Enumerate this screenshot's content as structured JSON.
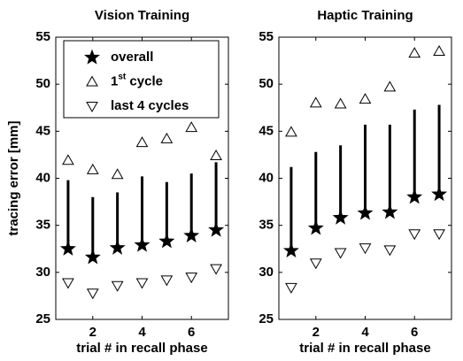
{
  "chart_data": [
    {
      "type": "scatter",
      "title": "Vision Training",
      "xlabel": "trial # in recall phase",
      "ylabel": "tracing error [mm]",
      "x": [
        1,
        2,
        3,
        4,
        5,
        6,
        7
      ],
      "xlim": [
        0.5,
        7.5
      ],
      "xticks": [
        2,
        4,
        6
      ],
      "ylim": [
        25,
        55
      ],
      "yticks": [
        25,
        30,
        35,
        40,
        45,
        50,
        55
      ],
      "legend": "upper left",
      "series": [
        {
          "name": "overall",
          "marker": "star",
          "color": "#000000",
          "values": [
            32.5,
            31.6,
            32.6,
            32.9,
            33.3,
            33.9,
            34.5
          ],
          "errors": [
            7.3,
            6.4,
            5.9,
            7.3,
            6.3,
            6.6,
            7.2
          ]
        },
        {
          "name": "1st cycle",
          "marker": "triangle-up",
          "color": "#000000",
          "values": [
            41.9,
            40.9,
            40.4,
            43.8,
            44.2,
            45.4,
            42.4
          ]
        },
        {
          "name": "last 4 cycles",
          "marker": "triangle-down",
          "color": "#000000",
          "values": [
            28.9,
            27.8,
            28.6,
            28.9,
            29.2,
            29.5,
            30.4
          ]
        }
      ]
    },
    {
      "type": "scatter",
      "title": "Haptic Training",
      "xlabel": "trial # in recall phase",
      "x": [
        1,
        2,
        3,
        4,
        5,
        6,
        7
      ],
      "xlim": [
        0.5,
        7.5
      ],
      "xticks": [
        2,
        4,
        6
      ],
      "ylim": [
        25,
        55
      ],
      "yticks": [
        25,
        30,
        35,
        40,
        45,
        50,
        55
      ],
      "series": [
        {
          "marker": "star",
          "color": "#000000",
          "values": [
            32.3,
            34.7,
            35.8,
            36.3,
            36.4,
            38.0,
            38.3
          ],
          "errors": [
            8.9,
            8.1,
            7.7,
            9.4,
            9.3,
            9.3,
            9.5
          ]
        },
        {
          "marker": "triangle-up",
          "color": "#000000",
          "values": [
            44.9,
            48.0,
            47.9,
            48.4,
            49.7,
            53.3,
            53.5
          ]
        },
        {
          "marker": "triangle-down",
          "color": "#000000",
          "values": [
            28.4,
            31.0,
            32.1,
            32.6,
            32.4,
            34.1,
            34.1
          ]
        }
      ]
    }
  ]
}
